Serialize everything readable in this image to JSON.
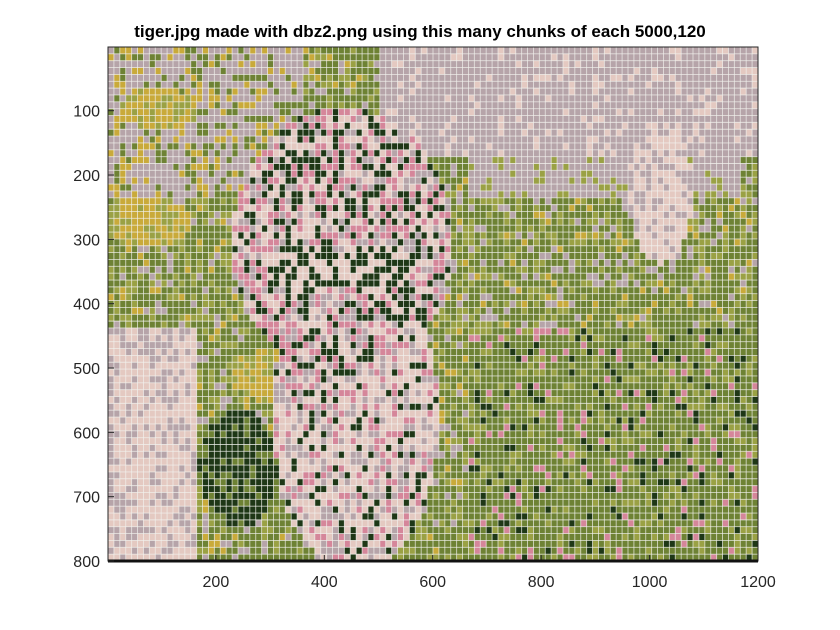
{
  "figure": {
    "title": "tiger.jpg made with dbz2.png using this many chunks of each 5000,120",
    "x_ticks": [
      200,
      400,
      600,
      800,
      1000,
      1200
    ],
    "y_ticks": [
      100,
      200,
      300,
      400,
      500,
      600,
      700,
      800
    ],
    "x_range": [
      1,
      1200
    ],
    "y_range": [
      1,
      800
    ],
    "grid_cols": 110,
    "grid_rows": 75,
    "colors": {
      "lilac": "#b6a4a9",
      "green": "#6e8234",
      "olive": "#9aa144",
      "yellow": "#c9aa3a",
      "dark": "#1e3716",
      "cream": "#e4c9c1",
      "pink": "#d5869a",
      "grid_line": "#f2f2ee",
      "axis": "#262626"
    }
  }
}
